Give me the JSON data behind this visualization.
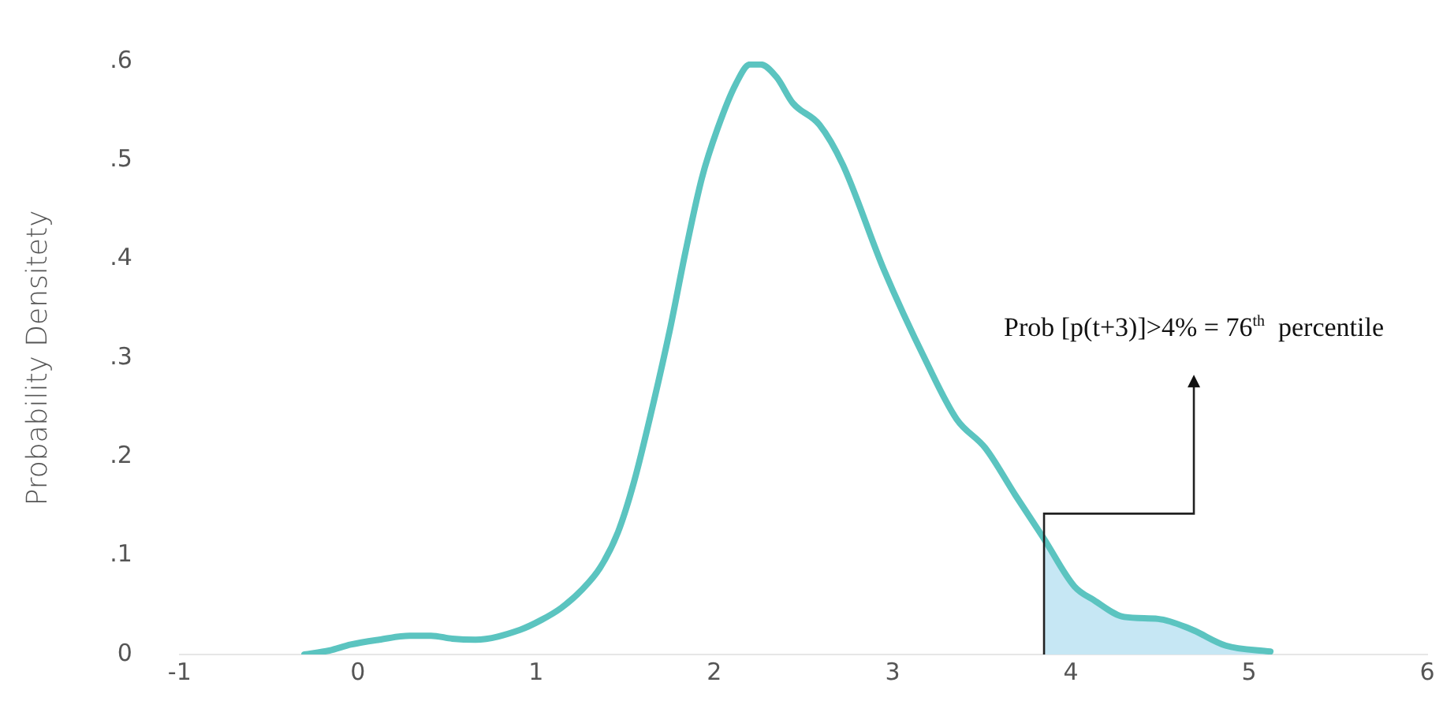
{
  "chart_data": {
    "type": "line",
    "ylabel": "Probability Densitety",
    "xlim": [
      -1,
      6
    ],
    "xticks": [
      -1,
      0,
      1,
      2,
      3,
      4,
      5,
      6
    ],
    "ylim": [
      0,
      0.6
    ],
    "yticks": [
      0,
      {
        "value": 0.1,
        "label": ".1"
      },
      {
        "value": 0.2,
        "label": ".2"
      },
      {
        "value": 0.3,
        "label": ".3"
      },
      {
        "value": 0.4,
        "label": ".4"
      },
      {
        "value": 0.5,
        "label": ".5"
      },
      {
        "value": 0.6,
        "label": ".6"
      }
    ],
    "grid": false,
    "legend": false,
    "marker": "none",
    "line_style": "solid",
    "series": [
      {
        "type": "area",
        "color": "#c6e7f4",
        "x": [
          3.85,
          4.02,
          4.13,
          4.3,
          4.49,
          4.67,
          4.87,
          5.12
        ],
        "values": [
          0.117,
          0.069,
          0.055,
          0.038,
          0.036,
          0.026,
          0.009,
          0.003
        ]
      },
      {
        "color": "#5bc4c0",
        "x": [
          -0.3,
          -0.16,
          -0.04,
          0.12,
          0.29,
          0.41,
          0.53,
          0.66,
          0.91,
          1.03,
          1.14,
          1.26,
          1.36,
          1.46,
          1.55,
          1.65,
          1.75,
          1.84,
          1.93,
          2.02,
          2.12,
          2.2,
          2.26,
          2.35,
          2.44,
          2.59,
          2.72,
          2.95,
          3.19,
          3.36,
          3.52,
          3.69,
          3.85,
          4.02,
          4.13,
          4.3,
          4.49,
          4.67,
          4.87,
          5.12
        ],
        "values": [
          0,
          0.004,
          0.01,
          0.015,
          0.019,
          0.019,
          0.016,
          0.015,
          0.025,
          0.035,
          0.047,
          0.066,
          0.088,
          0.124,
          0.175,
          0.248,
          0.328,
          0.409,
          0.482,
          0.533,
          0.577,
          0.597,
          0.597,
          0.584,
          0.558,
          0.536,
          0.496,
          0.39,
          0.296,
          0.238,
          0.209,
          0.161,
          0.117,
          0.069,
          0.055,
          0.038,
          0.036,
          0.026,
          0.009,
          0.003
        ]
      }
    ],
    "annotations": [
      "Prob [p(t+3)]>4% = 76$^{th}$  percentile"
    ]
  }
}
